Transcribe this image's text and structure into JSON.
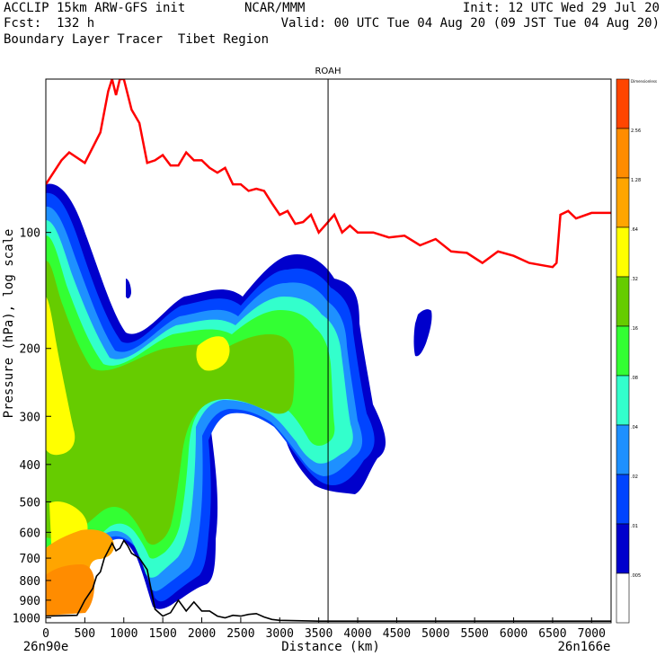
{
  "header": {
    "left_line1": "ACCLIP 15km ARW-GFS init",
    "left_line2": "Fcst:  132 h",
    "left_line3": "Boundary Layer Tracer  Tibet Region",
    "center_line1": "NCAR/MMM",
    "right_line1": "Init: 12 UTC Wed 29 Jul 20",
    "right_line2": "Valid: 00 UTC Tue 04 Aug 20 (09 JST Tue 04 Aug 20)"
  },
  "chart_data": {
    "type": "heatmap",
    "title": "ROAH",
    "xlabel": "Distance (km)",
    "ylabel": "Pressure (hPa), log scale",
    "x_range": [
      0,
      7250
    ],
    "y_range": [
      1030,
      40
    ],
    "y_scale": "log",
    "x_ticks": [
      0,
      500,
      1000,
      1500,
      2000,
      2500,
      3000,
      3500,
      4000,
      4500,
      5000,
      5500,
      6000,
      6500,
      7000
    ],
    "y_ticks": [
      100,
      200,
      300,
      400,
      500,
      600,
      700,
      800,
      900,
      1000
    ],
    "x_endpoint_labels": [
      "26n90e",
      "26n166e"
    ],
    "vertical_marker_x": 3620,
    "colorbar": {
      "labels": [
        "Dimensionless",
        "2.56",
        "1.28",
        ".64",
        ".32",
        ".16",
        ".08",
        ".04",
        ".02",
        ".01",
        ".005"
      ],
      "colors": [
        "#ff4500",
        "#ff8c00",
        "#ffa500",
        "#ffff00",
        "#66cc00",
        "#33ff33",
        "#33ffcc",
        "#1e90ff",
        "#0044ff",
        "#0000cc",
        "#ffffff"
      ]
    },
    "series": [
      {
        "name": "",
        "color": "#ff0000",
        "x": [
          0,
          200,
          300,
          500,
          700,
          800,
          850,
          900,
          950,
          1000,
          1100,
          1200,
          1300,
          1400,
          1500,
          1600,
          1700,
          1800,
          1900,
          2000,
          2100,
          2200,
          2300,
          2400,
          2500,
          2600,
          2700,
          2800,
          2900,
          3000,
          3100,
          3200,
          3300,
          3400,
          3500,
          3600,
          3700,
          3800,
          3900,
          4000,
          4200,
          4400,
          4600,
          4800,
          5000,
          5200,
          5400,
          5600,
          5800,
          6000,
          6200,
          6400,
          6500,
          6550,
          6600,
          6700,
          6800,
          7000,
          7250
        ],
        "y": [
          75,
          65,
          62,
          66,
          55,
          43,
          40,
          44,
          40,
          40,
          48,
          52,
          66,
          65,
          63,
          67,
          67,
          62,
          65,
          65,
          68,
          70,
          68,
          75,
          75,
          78,
          77,
          78,
          84,
          90,
          88,
          95,
          94,
          90,
          100,
          95,
          90,
          100,
          96,
          100,
          100,
          103,
          102,
          108,
          104,
          112,
          113,
          120,
          112,
          115,
          120,
          122,
          123,
          120,
          90,
          88,
          92,
          89,
          89
        ]
      },
      {
        "name": "",
        "color": "#000000",
        "x": [
          0,
          400,
          500,
          600,
          650,
          700,
          750,
          800,
          850,
          900,
          950,
          1000,
          1050,
          1100,
          1200,
          1300,
          1400,
          1500,
          1600,
          1700,
          1800,
          1900,
          2000,
          2100,
          2200,
          2300,
          2400,
          2500,
          2600,
          2700,
          2800,
          2900,
          3000,
          3500,
          4000,
          5000,
          6000,
          7000,
          7250
        ],
        "y": [
          990,
          985,
          900,
          840,
          780,
          760,
          700,
          670,
          640,
          670,
          660,
          630,
          650,
          680,
          700,
          750,
          950,
          990,
          970,
          900,
          960,
          910,
          960,
          960,
          990,
          1000,
          985,
          990,
          980,
          975,
          995,
          1010,
          1015,
          1020,
          1020,
          1020,
          1020,
          1020,
          1020
        ]
      }
    ]
  }
}
